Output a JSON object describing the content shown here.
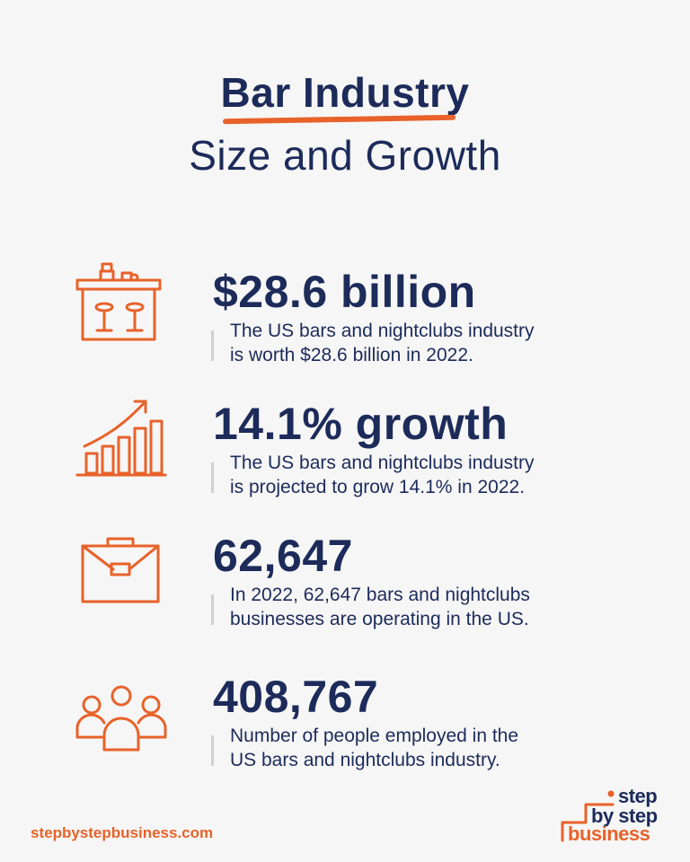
{
  "title": {
    "line1": "Bar Industry",
    "line2": "Size and Growth"
  },
  "stats": [
    {
      "value": "$28.6 billion",
      "desc_line1": "The US bars and nightclubs industry",
      "desc_line2": "is worth $28.6 billion in 2022.",
      "icon": "bar-counter-icon"
    },
    {
      "value": "14.1% growth",
      "desc_line1": "The US bars and nightclubs industry",
      "desc_line2": "is projected to grow 14.1% in 2022.",
      "icon": "growth-chart-icon"
    },
    {
      "value": "62,647",
      "desc_line1": "In 2022, 62,647 bars and nightclubs",
      "desc_line2": "businesses are operating in the US.",
      "icon": "briefcase-icon"
    },
    {
      "value": "408,767",
      "desc_line1": "Number of people employed in the",
      "desc_line2": "US bars and nightclubs industry.",
      "icon": "people-group-icon"
    }
  ],
  "footer": {
    "url": "stepbystepbusiness.com",
    "logo_line1": "step",
    "logo_line2": "by step",
    "logo_line3": "business"
  },
  "colors": {
    "accent": "#e8622a",
    "navy": "#1c2b5a",
    "background": "#f6f6f6"
  }
}
